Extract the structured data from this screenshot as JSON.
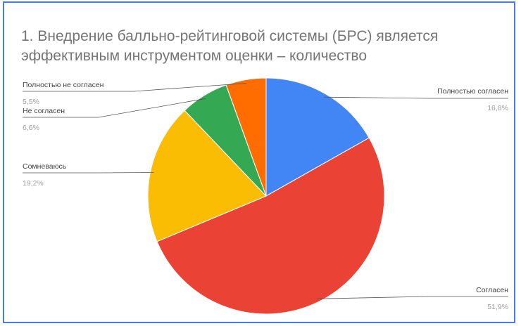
{
  "chart_data": {
    "type": "pie",
    "title": "1. Внедрение балльно-рейтинговой системы (БРС) является эффективным инструментом оценки – количество",
    "slices": [
      {
        "label": "Полностью согласен",
        "value": 16.8,
        "percent_label": "16,8%",
        "color": "#4285f4"
      },
      {
        "label": "Согласен",
        "value": 51.9,
        "percent_label": "51,9%",
        "color": "#ea4335"
      },
      {
        "label": "Сомневаюсь",
        "value": 19.2,
        "percent_label": "19,2%",
        "color": "#fbbc04"
      },
      {
        "label": "Не согласен",
        "value": 6.6,
        "percent_label": "6,6%",
        "color": "#34a853"
      },
      {
        "label": "Полностью не согласен",
        "value": 5.5,
        "percent_label": "5,5%",
        "color": "#ff6d01"
      }
    ],
    "start_angle": "top",
    "direction": "clockwise",
    "legend": "labels-with-leader-lines"
  }
}
